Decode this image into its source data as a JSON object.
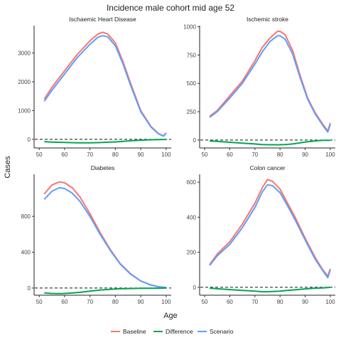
{
  "title": "Incidence male cohort mid age 52",
  "xlabel": "Age",
  "ylabel": "Cases",
  "colors": {
    "Baseline": "#F8766D",
    "Difference": "#00A64F",
    "Scenario": "#619CFF"
  },
  "legend": {
    "position": "bottom",
    "items": [
      "Baseline",
      "Difference",
      "Scenario"
    ]
  },
  "chart_data": [
    {
      "type": "line",
      "title": "Ischaemic Heart Disease",
      "xlim": [
        48,
        102
      ],
      "ylim": [
        -300,
        3950
      ],
      "xticks": [
        50,
        60,
        70,
        80,
        90,
        100
      ],
      "yticks": [
        0,
        1000,
        2000,
        3000
      ],
      "reference_line": 0,
      "x": [
        52,
        55,
        60,
        65,
        70,
        73,
        75,
        77,
        80,
        83,
        86,
        90,
        94,
        97,
        99,
        100
      ],
      "series": [
        {
          "name": "Baseline",
          "values": [
            1400,
            1800,
            2380,
            2950,
            3420,
            3650,
            3720,
            3660,
            3350,
            2700,
            1950,
            1000,
            450,
            200,
            120,
            230
          ]
        },
        {
          "name": "Scenario",
          "values": [
            1320,
            1700,
            2270,
            2840,
            3300,
            3540,
            3600,
            3560,
            3250,
            2620,
            1880,
            960,
            430,
            190,
            110,
            220
          ]
        },
        {
          "name": "Difference",
          "values": [
            -80,
            -95,
            -110,
            -120,
            -120,
            -115,
            -110,
            -100,
            -90,
            -70,
            -50,
            -30,
            -15,
            -8,
            -5,
            -5
          ]
        }
      ]
    },
    {
      "type": "line",
      "title": "Ischemic stroke",
      "xlim": [
        48,
        102
      ],
      "ylim": [
        -70,
        1010
      ],
      "xticks": [
        50,
        60,
        70,
        80,
        90,
        100
      ],
      "yticks": [
        0,
        250,
        500,
        750,
        1000
      ],
      "reference_line": 0,
      "x": [
        52,
        55,
        60,
        65,
        70,
        73,
        76,
        79,
        80,
        82,
        85,
        88,
        91,
        94,
        97,
        99,
        100
      ],
      "series": [
        {
          "name": "Baseline",
          "values": [
            210,
            260,
            390,
            520,
            700,
            820,
            900,
            960,
            960,
            930,
            790,
            570,
            370,
            240,
            140,
            80,
            150
          ]
        },
        {
          "name": "Scenario",
          "values": [
            200,
            250,
            370,
            500,
            670,
            780,
            870,
            920,
            920,
            890,
            760,
            550,
            360,
            230,
            130,
            70,
            140
          ]
        },
        {
          "name": "Difference",
          "values": [
            -8,
            -12,
            -20,
            -27,
            -35,
            -40,
            -42,
            -42,
            -42,
            -40,
            -35,
            -25,
            -15,
            -8,
            -3,
            -2,
            -2
          ]
        }
      ]
    },
    {
      "type": "line",
      "title": "Diabetes",
      "xlim": [
        48,
        102
      ],
      "ylim": [
        -80,
        1270
      ],
      "xticks": [
        50,
        60,
        70,
        80,
        90,
        100
      ],
      "yticks": [
        0,
        400,
        800
      ],
      "reference_line": 0,
      "x": [
        52,
        55,
        58,
        60,
        63,
        66,
        70,
        74,
        78,
        82,
        86,
        90,
        94,
        97,
        100
      ],
      "series": [
        {
          "name": "Baseline",
          "values": [
            1050,
            1150,
            1185,
            1175,
            1120,
            1020,
            830,
            620,
            430,
            270,
            160,
            80,
            35,
            15,
            5
          ]
        },
        {
          "name": "Scenario",
          "values": [
            990,
            1080,
            1120,
            1110,
            1060,
            970,
            800,
            600,
            420,
            265,
            155,
            78,
            33,
            14,
            5
          ]
        },
        {
          "name": "Difference",
          "values": [
            -55,
            -60,
            -62,
            -60,
            -55,
            -48,
            -35,
            -22,
            -14,
            -8,
            -5,
            -3,
            -2,
            -1,
            0
          ]
        }
      ]
    },
    {
      "type": "line",
      "title": "Colon cancer",
      "xlim": [
        48,
        102
      ],
      "ylim": [
        -45,
        645
      ],
      "xticks": [
        50,
        60,
        70,
        80,
        90,
        100
      ],
      "yticks": [
        0,
        200,
        400,
        600
      ],
      "reference_line": 0,
      "x": [
        52,
        55,
        60,
        65,
        70,
        73,
        75,
        77,
        80,
        83,
        86,
        90,
        94,
        97,
        99,
        100
      ],
      "series": [
        {
          "name": "Baseline",
          "values": [
            130,
            190,
            260,
            360,
            480,
            570,
            615,
            605,
            560,
            480,
            400,
            280,
            170,
            100,
            65,
            105
          ]
        },
        {
          "name": "Scenario",
          "values": [
            125,
            180,
            245,
            340,
            455,
            545,
            585,
            580,
            540,
            465,
            385,
            270,
            160,
            95,
            55,
            100
          ]
        },
        {
          "name": "Difference",
          "values": [
            -5,
            -8,
            -13,
            -18,
            -22,
            -25,
            -25,
            -24,
            -22,
            -18,
            -14,
            -9,
            -5,
            -3,
            -1,
            0
          ]
        }
      ]
    }
  ]
}
